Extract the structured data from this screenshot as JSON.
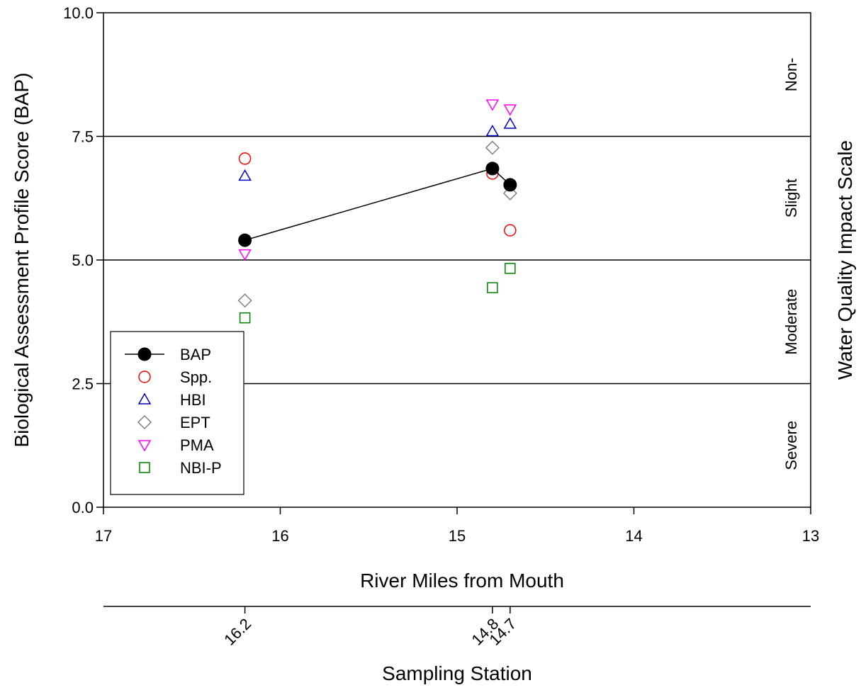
{
  "chart_data": {
    "type": "scatter",
    "xlabel": "River Miles from Mouth",
    "ylabel": "Biological Assessment Profile Score (BAP)",
    "right_axis_label": "Water Quality Impact Scale",
    "secondary_axis_label": "Sampling Station",
    "xlim": [
      17,
      13
    ],
    "ylim": [
      0,
      10
    ],
    "x_ticks": [
      "17",
      "16",
      "15",
      "14",
      "13"
    ],
    "y_ticks": [
      "0.0",
      "2.5",
      "5.0",
      "7.5",
      "10.0"
    ],
    "threshold_lines": [
      2.5,
      5.0,
      7.5
    ],
    "impact_zones": [
      {
        "label": "Severe",
        "range": [
          0,
          2.5
        ]
      },
      {
        "label": "Moderate",
        "range": [
          2.5,
          5.0
        ]
      },
      {
        "label": "Slight",
        "range": [
          5.0,
          7.5
        ]
      },
      {
        "label": "Non-",
        "range": [
          7.5,
          10.0
        ]
      }
    ],
    "stations": [
      "16.2",
      "14.8",
      "14.7"
    ],
    "station_positions": [
      16.2,
      14.8,
      14.7
    ],
    "legend_position": "bottom-left",
    "series": [
      {
        "name": "BAP",
        "marker": "circle-filled",
        "color": "#000000",
        "line": true,
        "points": [
          [
            16.2,
            5.4
          ],
          [
            14.8,
            6.85
          ],
          [
            14.7,
            6.52
          ]
        ]
      },
      {
        "name": "Spp.",
        "marker": "circle",
        "color": "#ff0000",
        "points": [
          [
            16.2,
            7.05
          ],
          [
            14.8,
            6.75
          ],
          [
            14.7,
            5.6
          ]
        ]
      },
      {
        "name": "HBI",
        "marker": "triangle-up",
        "color": "#0000cc",
        "points": [
          [
            16.2,
            6.7
          ],
          [
            14.8,
            7.6
          ],
          [
            14.7,
            7.75
          ]
        ]
      },
      {
        "name": "EPT",
        "marker": "diamond",
        "color": "#808080",
        "points": [
          [
            16.2,
            4.18
          ],
          [
            14.8,
            7.27
          ],
          [
            14.7,
            6.35
          ]
        ]
      },
      {
        "name": "PMA",
        "marker": "triangle-down",
        "color": "#ff00ff",
        "points": [
          [
            16.2,
            5.12
          ],
          [
            14.8,
            8.15
          ],
          [
            14.7,
            8.05
          ]
        ]
      },
      {
        "name": "NBI-P",
        "marker": "square",
        "color": "#008000",
        "points": [
          [
            16.2,
            3.83
          ],
          [
            14.8,
            4.44
          ],
          [
            14.7,
            4.83
          ]
        ]
      }
    ]
  }
}
